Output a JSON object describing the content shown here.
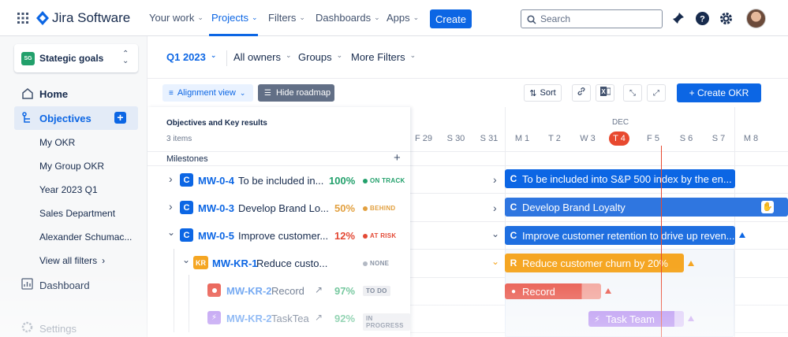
{
  "topbar": {
    "product": "Jira Software",
    "nav": [
      {
        "label": "Your work"
      },
      {
        "label": "Projects"
      },
      {
        "label": "Filters"
      },
      {
        "label": "Dashboards"
      },
      {
        "label": "Apps"
      }
    ],
    "create_label": "Create",
    "search_placeholder": "Search"
  },
  "sidebar": {
    "space_badge": "SG",
    "space_name": "Stategic goals",
    "home": "Home",
    "objectives": "Objectives",
    "sub_items": [
      "My OKR",
      "My Group OKR",
      "Year 2023 Q1",
      "Sales Department",
      "Alexander Schumac..."
    ],
    "view_all": "View all filters",
    "dashboard": "Dashboard",
    "settings": "Settings"
  },
  "filters": {
    "quarter": "Q1 2023",
    "owners": "All owners",
    "groups": "Groups",
    "more": "More Filters"
  },
  "toolbar": {
    "alignment_view": "Alignment view",
    "hide_roadmap": "Hide roadmap",
    "sort": "Sort",
    "create_okr": "+ Create OKR"
  },
  "panel": {
    "title": "Objectives and Key results",
    "count": "3 items",
    "milestones": "Milestones"
  },
  "timeline": {
    "month": "DEC",
    "days": [
      {
        "label": "F 29",
        "today": false
      },
      {
        "label": "S 30",
        "today": false
      },
      {
        "label": "S 31",
        "today": false
      },
      {
        "label": "M 1",
        "today": false
      },
      {
        "label": "T 2",
        "today": false
      },
      {
        "label": "W 3",
        "today": false
      },
      {
        "label": "T 4",
        "today": true
      },
      {
        "label": "F 5",
        "today": false
      },
      {
        "label": "S 6",
        "today": false
      },
      {
        "label": "S 7",
        "today": false
      },
      {
        "label": "M 8",
        "today": false
      }
    ]
  },
  "rows": [
    {
      "badge": "C",
      "key": "MW-0-4",
      "title": "To be included in...",
      "pct": "100%",
      "status": "ON TRACK",
      "bar": "To be included into S&P 500 index by the en..."
    },
    {
      "badge": "C",
      "key": "MW-0-3",
      "title": "Develop Brand Lo...",
      "pct": "50%",
      "status": "BEHIND",
      "bar": "Develop Brand Loyalty"
    },
    {
      "badge": "C",
      "key": "MW-0-5",
      "title": "Improve customer...",
      "pct": "12%",
      "status": "AT RISK",
      "bar": "Improve customer retention to drive up reven..."
    },
    {
      "badge": "KR",
      "key": "MW-KR-1",
      "title": "Reduce custo...",
      "pct": "",
      "status": "NONE",
      "bar": "Reduce customer churn by 20%"
    },
    {
      "badge": "",
      "key": "MW-KR-2",
      "title": "Record",
      "pct": "97%",
      "status": "TO DO",
      "bar": "Record"
    },
    {
      "badge": "",
      "key": "MW-KR-2",
      "title": "TaskTea",
      "pct": "92%",
      "status": "IN PROGRESS",
      "bar": "Task Team"
    }
  ],
  "colors": {
    "primary": "#0c66e4",
    "on_track": "#22a06b",
    "behind": "#e2a03f",
    "at_risk": "#e34935",
    "kr": "#f5a623",
    "today": "#e8492f"
  }
}
